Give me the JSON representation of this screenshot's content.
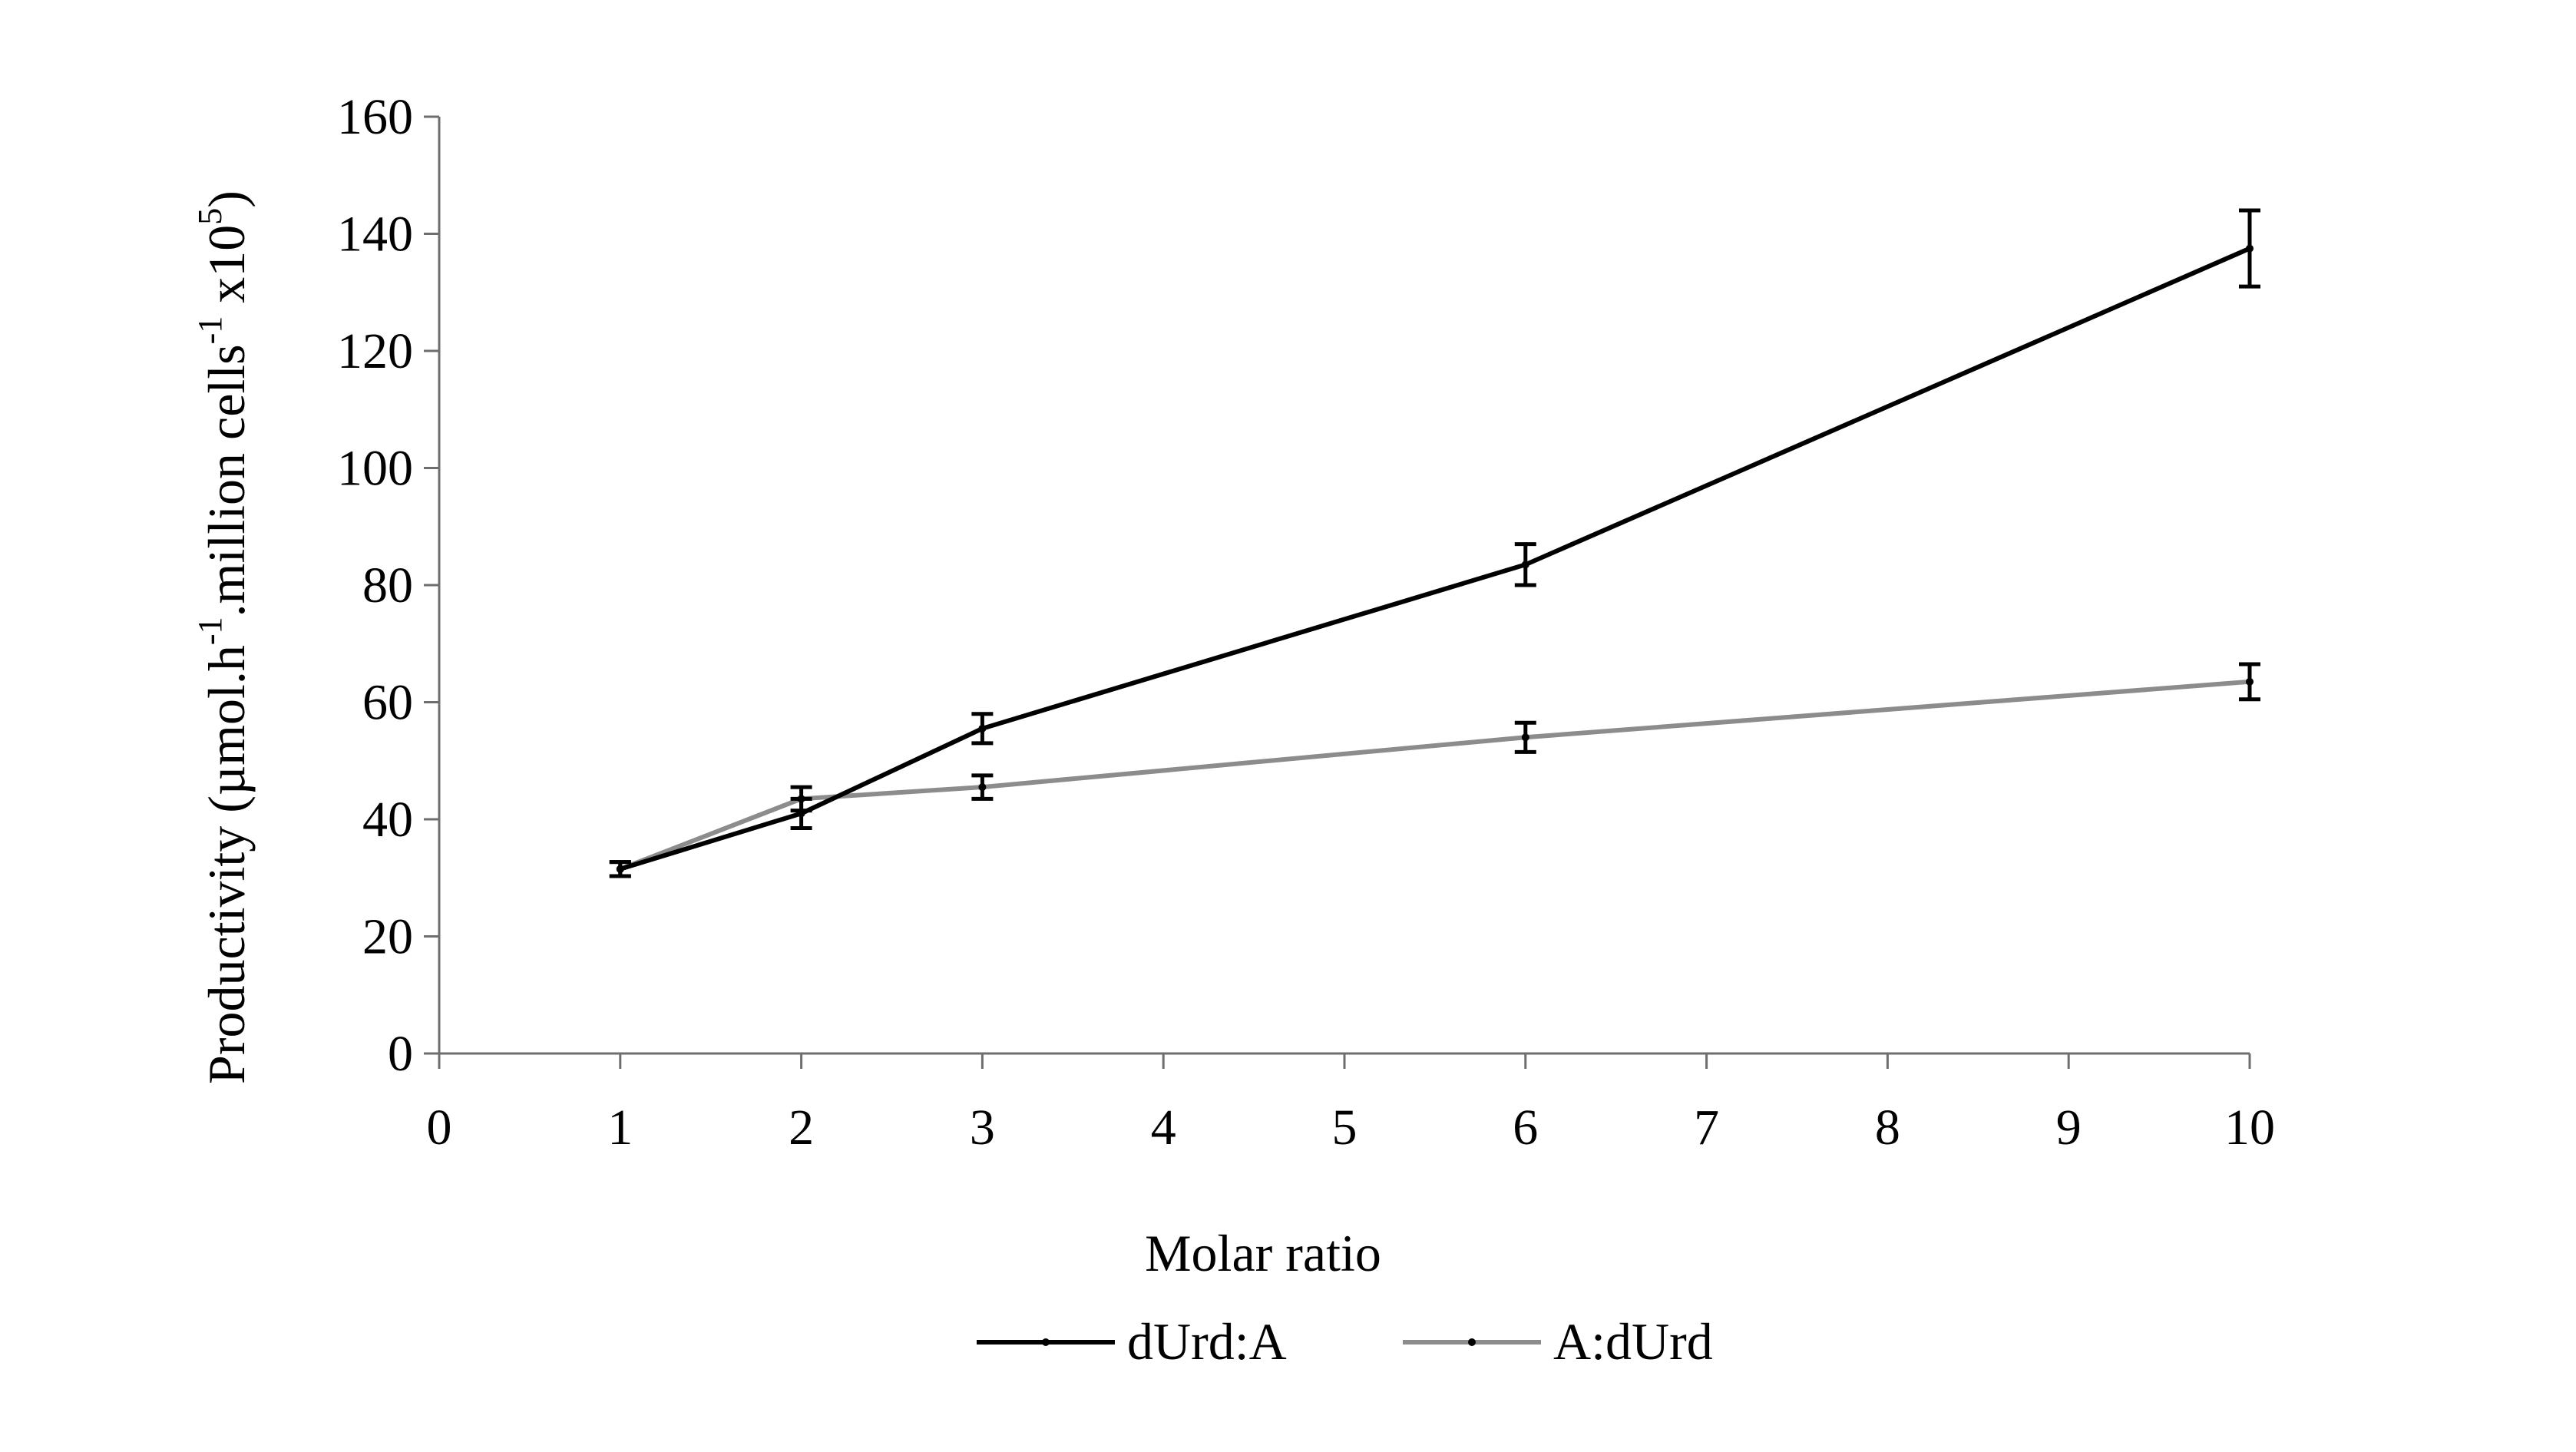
{
  "chart_data": {
    "type": "line",
    "xlabel": "Molar ratio",
    "ylabel": {
      "prefix": "Productivity (µmol.h",
      "sup1": "-1",
      "middle": ".million cells",
      "sup2": "-1",
      "suffix": " x10",
      "sup3": "5",
      "close": ")"
    },
    "xlim": [
      0,
      10
    ],
    "ylim": [
      0,
      160
    ],
    "x_ticks": [
      "0",
      "1",
      "2",
      "3",
      "4",
      "5",
      "6",
      "7",
      "8",
      "9",
      "10"
    ],
    "y_ticks": [
      "0",
      "20",
      "40",
      "60",
      "80",
      "100",
      "120",
      "140",
      "160"
    ],
    "grid": false,
    "legend_position": "bottom-center",
    "series": [
      {
        "name": "dUrd:A",
        "color": "#000000",
        "x": [
          1,
          2,
          3,
          6,
          10
        ],
        "values": [
          31.5,
          41,
          55.5,
          83.5,
          137.5
        ],
        "errors": [
          1.2,
          2.5,
          2.5,
          3.5,
          6.5
        ]
      },
      {
        "name": "A:dUrd",
        "color": "#8c8c8c",
        "x": [
          1,
          2,
          3,
          6,
          10
        ],
        "values": [
          31.5,
          43.5,
          45.5,
          54,
          63.5
        ],
        "errors": [
          1.2,
          2,
          2,
          2.5,
          3
        ]
      }
    ]
  }
}
